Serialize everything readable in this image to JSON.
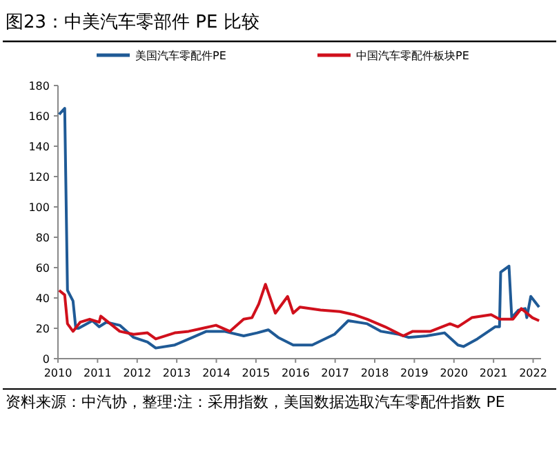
{
  "chart_data": {
    "type": "line",
    "title": "图23：中美汽车零部件 PE 比较",
    "legend": "top",
    "grid": false,
    "marker": "none",
    "line_style": "solid",
    "xlim": [
      2010,
      2022.2
    ],
    "xticks": [
      2010,
      2011,
      2012,
      2013,
      2014,
      2015,
      2016,
      2017,
      2018,
      2019,
      2020,
      2021,
      2022
    ],
    "ylim": [
      0,
      180
    ],
    "yticks": [
      0,
      20,
      40,
      60,
      80,
      100,
      120,
      140,
      160,
      180
    ],
    "series": [
      {
        "name": "美国汽车零配件PE",
        "color": "#1f5a96",
        "x": [
          2010.03,
          2010.17,
          2010.24,
          2010.38,
          2010.45,
          2010.52,
          2010.87,
          2011.04,
          2011.22,
          2011.56,
          2011.91,
          2012.26,
          2012.47,
          2012.95,
          2013.4,
          2013.75,
          2014.2,
          2014.69,
          2015.03,
          2015.31,
          2015.56,
          2015.94,
          2016.42,
          2016.98,
          2017.33,
          2017.81,
          2018.16,
          2018.61,
          2018.85,
          2019.31,
          2019.76,
          2020.1,
          2020.24,
          2020.59,
          2021.04,
          2021.15,
          2021.18,
          2021.39,
          2021.46,
          2021.63,
          2021.8,
          2021.84,
          2021.94,
          2022.15
        ],
        "values": [
          161,
          165,
          45,
          38,
          20,
          20,
          25,
          21,
          24,
          22,
          14,
          11,
          7,
          9,
          14,
          18,
          18,
          15,
          17,
          19,
          14,
          9,
          9,
          16,
          25,
          23,
          18,
          16,
          14,
          15,
          17,
          9,
          8,
          13,
          21,
          21,
          57,
          61,
          27,
          32,
          33,
          27,
          41,
          34
        ]
      },
      {
        "name": "中国汽车零配件板块PE",
        "color": "#d0101c",
        "x": [
          2010.03,
          2010.17,
          2010.24,
          2010.38,
          2010.56,
          2010.8,
          2011.04,
          2011.08,
          2011.32,
          2011.56,
          2011.91,
          2012.26,
          2012.47,
          2012.95,
          2013.3,
          2013.65,
          2013.99,
          2014.34,
          2014.69,
          2014.9,
          2015.07,
          2015.24,
          2015.49,
          2015.8,
          2015.94,
          2016.11,
          2016.63,
          2017.12,
          2017.47,
          2017.81,
          2018.26,
          2018.72,
          2018.96,
          2019.41,
          2019.9,
          2020.1,
          2020.45,
          2020.94,
          2021.15,
          2021.49,
          2021.7,
          2021.98,
          2022.15
        ],
        "values": [
          45,
          42,
          23,
          18,
          24,
          26,
          24,
          28,
          23,
          18,
          16,
          17,
          13,
          17,
          18,
          20,
          22,
          18,
          26,
          27,
          36,
          49,
          30,
          41,
          30,
          34,
          32,
          31,
          29,
          26,
          21,
          15,
          18,
          18,
          23,
          21,
          27,
          29,
          26,
          26,
          33,
          27,
          25
        ]
      }
    ],
    "annotations": [
      "资料来源：中汽协，整理:注：采用指数，美国数据选取汽车零配件指数 PE"
    ]
  }
}
